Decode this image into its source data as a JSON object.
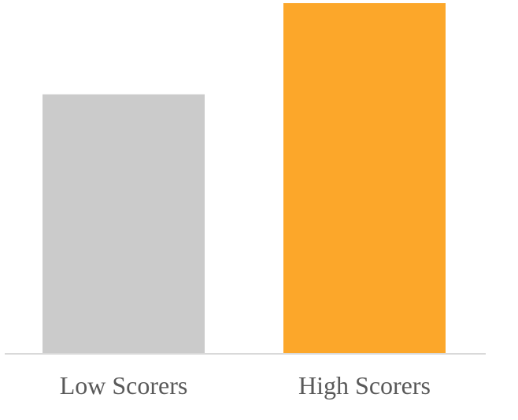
{
  "chart_data": {
    "type": "bar",
    "categories": [
      "Low Scorers",
      "High Scorers"
    ],
    "values": [
      74,
      100
    ],
    "colors": [
      "#cbcbcb",
      "#fca72a"
    ],
    "axis_color": "#d9d9d9",
    "label_color": "#595959",
    "ylim": [
      0,
      100
    ],
    "grid": false,
    "legend": "none"
  }
}
